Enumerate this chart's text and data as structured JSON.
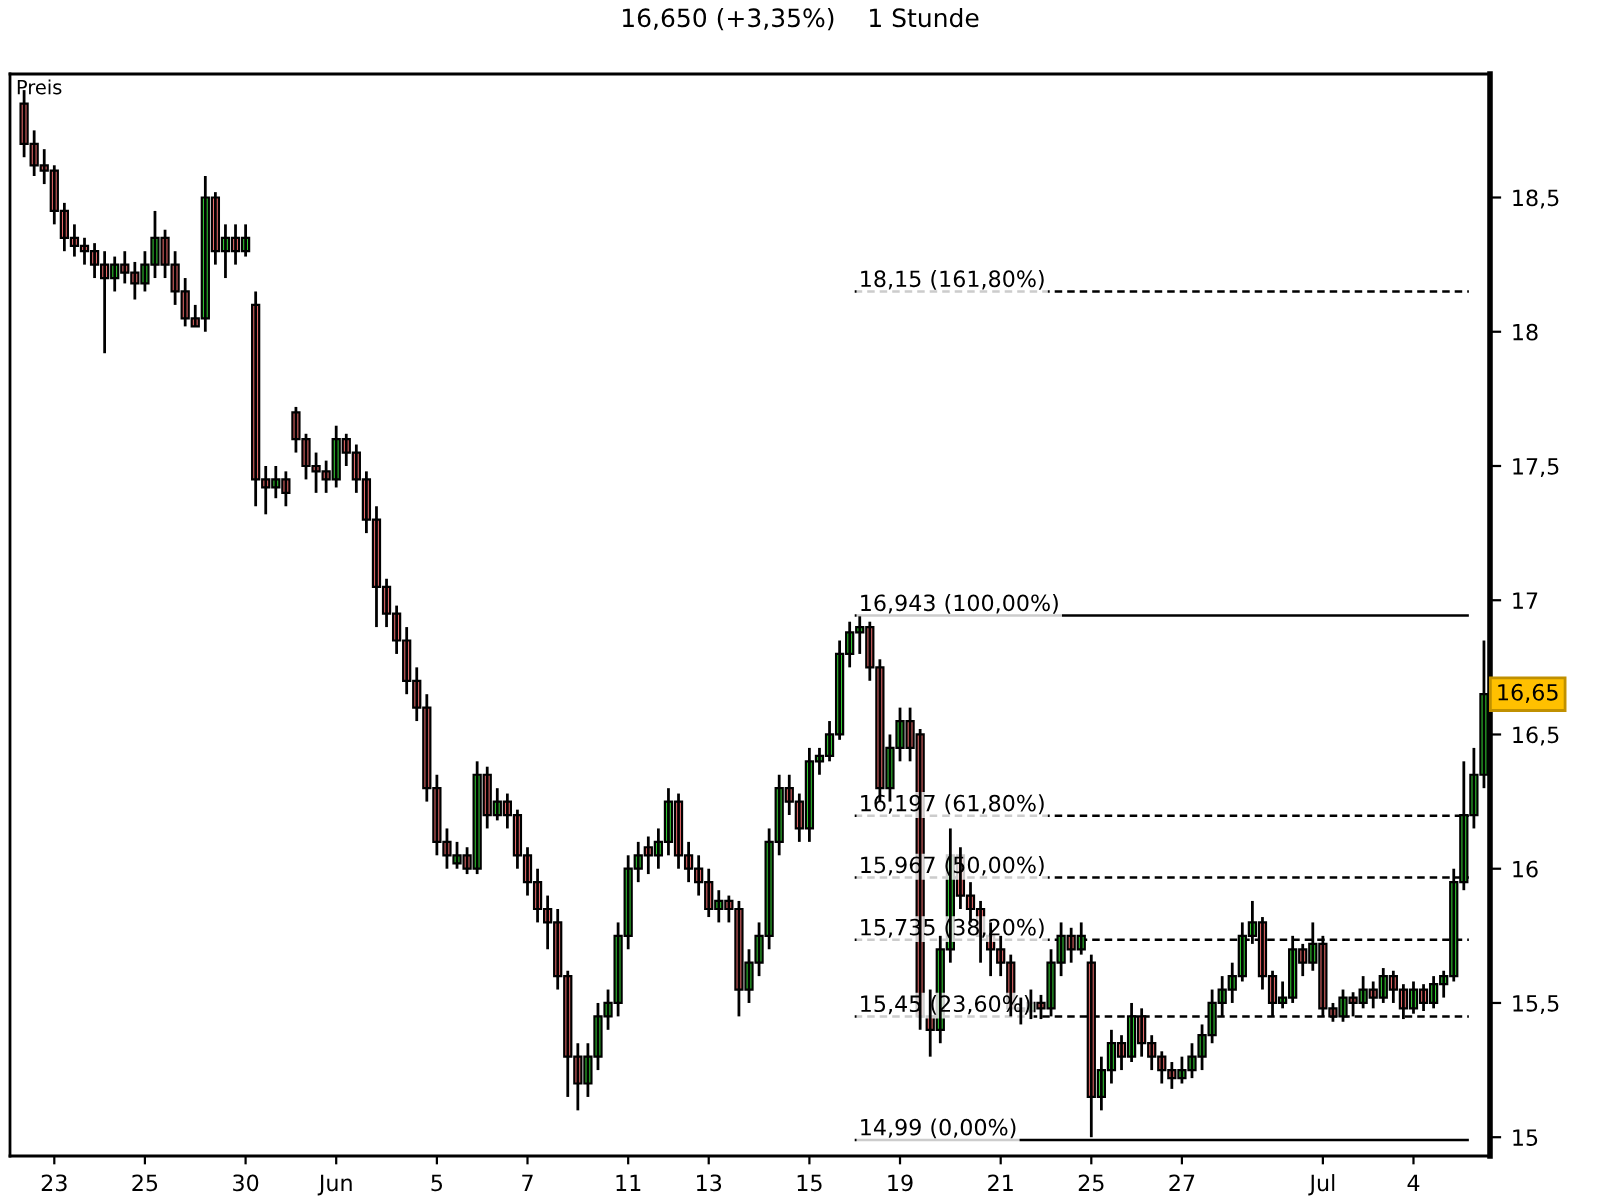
{
  "chart_data": {
    "type": "candlestick",
    "title": "16,650 (+3,35%)    1 Stunde",
    "ylabel": "Preis",
    "categories": [
      null,
      null,
      null,
      "23",
      null,
      null,
      null,
      null,
      null,
      null,
      null,
      null,
      "25",
      null,
      null,
      null,
      null,
      null,
      null,
      null,
      null,
      null,
      "30",
      null,
      null,
      null,
      null,
      null,
      null,
      null,
      null,
      "Jun",
      null,
      null,
      null,
      null,
      null,
      null,
      null,
      null,
      null,
      "5",
      null,
      null,
      null,
      null,
      null,
      null,
      null,
      null,
      "7",
      null,
      null,
      null,
      null,
      null,
      null,
      null,
      null,
      null,
      "11",
      null,
      null,
      null,
      null,
      null,
      null,
      null,
      "13",
      null,
      null,
      null,
      null,
      null,
      null,
      null,
      null,
      null,
      "15",
      null,
      null,
      null,
      null,
      null,
      null,
      null,
      null,
      "19",
      null,
      null,
      null,
      null,
      null,
      null,
      null,
      null,
      null,
      "21",
      null,
      null,
      null,
      null,
      null,
      null,
      null,
      null,
      "25",
      null,
      null,
      null,
      null,
      null,
      null,
      null,
      null,
      "27",
      null,
      null,
      null,
      null,
      null,
      null,
      null,
      null,
      null,
      null,
      null,
      null,
      null,
      "Jul",
      null,
      null,
      null,
      null,
      null,
      null,
      null,
      null,
      "4",
      null,
      null,
      null,
      null,
      null,
      null,
      null
    ],
    "ohlc": [
      [
        18.85,
        18.9,
        18.65,
        18.7
      ],
      [
        18.7,
        18.75,
        18.58,
        18.62
      ],
      [
        18.62,
        18.68,
        18.55,
        18.6
      ],
      [
        18.6,
        18.62,
        18.4,
        18.45
      ],
      [
        18.45,
        18.48,
        18.3,
        18.35
      ],
      [
        18.35,
        18.4,
        18.28,
        18.32
      ],
      [
        18.32,
        18.35,
        18.25,
        18.3
      ],
      [
        18.3,
        18.33,
        18.2,
        18.25
      ],
      [
        18.25,
        18.3,
        17.92,
        18.2
      ],
      [
        18.2,
        18.28,
        18.15,
        18.25
      ],
      [
        18.25,
        18.3,
        18.18,
        18.22
      ],
      [
        18.22,
        18.26,
        18.12,
        18.18
      ],
      [
        18.18,
        18.3,
        18.15,
        18.25
      ],
      [
        18.25,
        18.45,
        18.2,
        18.35
      ],
      [
        18.35,
        18.38,
        18.2,
        18.25
      ],
      [
        18.25,
        18.3,
        18.1,
        18.15
      ],
      [
        18.15,
        18.2,
        18.02,
        18.05
      ],
      [
        18.05,
        18.1,
        18.02,
        18.02
      ],
      [
        18.05,
        18.58,
        18.0,
        18.5
      ],
      [
        18.5,
        18.52,
        18.25,
        18.3
      ],
      [
        18.3,
        18.4,
        18.2,
        18.35
      ],
      [
        18.35,
        18.4,
        18.25,
        18.3
      ],
      [
        18.3,
        18.4,
        18.28,
        18.35
      ],
      [
        18.1,
        18.15,
        17.35,
        17.45
      ],
      [
        17.45,
        17.5,
        17.32,
        17.42
      ],
      [
        17.42,
        17.5,
        17.38,
        17.45
      ],
      [
        17.45,
        17.48,
        17.35,
        17.4
      ],
      [
        17.7,
        17.72,
        17.55,
        17.6
      ],
      [
        17.6,
        17.62,
        17.45,
        17.5
      ],
      [
        17.5,
        17.55,
        17.4,
        17.48
      ],
      [
        17.48,
        17.52,
        17.4,
        17.45
      ],
      [
        17.45,
        17.65,
        17.42,
        17.6
      ],
      [
        17.6,
        17.62,
        17.5,
        17.55
      ],
      [
        17.55,
        17.58,
        17.4,
        17.45
      ],
      [
        17.45,
        17.48,
        17.25,
        17.3
      ],
      [
        17.3,
        17.35,
        16.9,
        17.05
      ],
      [
        17.05,
        17.08,
        16.9,
        16.95
      ],
      [
        16.95,
        16.98,
        16.8,
        16.85
      ],
      [
        16.85,
        16.9,
        16.65,
        16.7
      ],
      [
        16.7,
        16.75,
        16.55,
        16.6
      ],
      [
        16.6,
        16.65,
        16.25,
        16.3
      ],
      [
        16.3,
        16.35,
        16.05,
        16.1
      ],
      [
        16.1,
        16.15,
        16.0,
        16.05
      ],
      [
        16.02,
        16.1,
        16.0,
        16.05
      ],
      [
        16.05,
        16.08,
        15.98,
        16.0
      ],
      [
        16.0,
        16.4,
        15.98,
        16.35
      ],
      [
        16.35,
        16.38,
        16.15,
        16.2
      ],
      [
        16.2,
        16.3,
        16.18,
        16.25
      ],
      [
        16.25,
        16.28,
        16.15,
        16.2
      ],
      [
        16.2,
        16.22,
        16.0,
        16.05
      ],
      [
        16.05,
        16.08,
        15.9,
        15.95
      ],
      [
        15.95,
        16.0,
        15.8,
        15.85
      ],
      [
        15.85,
        15.9,
        15.7,
        15.8
      ],
      [
        15.8,
        15.85,
        15.55,
        15.6
      ],
      [
        15.6,
        15.62,
        15.15,
        15.3
      ],
      [
        15.3,
        15.35,
        15.1,
        15.2
      ],
      [
        15.2,
        15.35,
        15.15,
        15.3
      ],
      [
        15.3,
        15.5,
        15.25,
        15.45
      ],
      [
        15.45,
        15.55,
        15.4,
        15.5
      ],
      [
        15.5,
        15.8,
        15.45,
        15.75
      ],
      [
        15.75,
        16.05,
        15.7,
        16.0
      ],
      [
        16.0,
        16.1,
        15.95,
        16.05
      ],
      [
        16.08,
        16.12,
        15.98,
        16.05
      ],
      [
        16.05,
        16.15,
        16.0,
        16.1
      ],
      [
        16.1,
        16.3,
        16.05,
        16.25
      ],
      [
        16.25,
        16.28,
        16.0,
        16.05
      ],
      [
        16.05,
        16.1,
        15.95,
        16.0
      ],
      [
        16.0,
        16.05,
        15.9,
        15.95
      ],
      [
        15.95,
        16.0,
        15.82,
        15.85
      ],
      [
        15.85,
        15.92,
        15.8,
        15.88
      ],
      [
        15.88,
        15.9,
        15.8,
        15.85
      ],
      [
        15.85,
        15.88,
        15.45,
        15.55
      ],
      [
        15.55,
        15.7,
        15.5,
        15.65
      ],
      [
        15.65,
        15.8,
        15.6,
        15.75
      ],
      [
        15.75,
        16.15,
        15.7,
        16.1
      ],
      [
        16.1,
        16.35,
        16.05,
        16.3
      ],
      [
        16.3,
        16.35,
        16.2,
        16.25
      ],
      [
        16.25,
        16.28,
        16.1,
        16.15
      ],
      [
        16.15,
        16.45,
        16.1,
        16.4
      ],
      [
        16.4,
        16.45,
        16.35,
        16.42
      ],
      [
        16.42,
        16.55,
        16.4,
        16.5
      ],
      [
        16.5,
        16.85,
        16.48,
        16.8
      ],
      [
        16.8,
        16.92,
        16.75,
        16.88
      ],
      [
        16.88,
        16.94,
        16.8,
        16.9
      ],
      [
        16.9,
        16.92,
        16.7,
        16.75
      ],
      [
        16.75,
        16.78,
        16.25,
        16.3
      ],
      [
        16.3,
        16.5,
        16.25,
        16.45
      ],
      [
        16.45,
        16.6,
        16.4,
        16.55
      ],
      [
        16.55,
        16.6,
        16.4,
        16.45
      ],
      [
        16.5,
        16.52,
        15.4,
        15.45
      ],
      [
        15.45,
        15.55,
        15.3,
        15.4
      ],
      [
        15.4,
        15.75,
        15.35,
        15.7
      ],
      [
        15.7,
        16.15,
        15.65,
        16.05
      ],
      [
        16.05,
        16.08,
        15.85,
        15.9
      ],
      [
        15.9,
        15.95,
        15.8,
        15.85
      ],
      [
        15.85,
        15.88,
        15.65,
        15.75
      ],
      [
        15.75,
        15.8,
        15.6,
        15.7
      ],
      [
        15.7,
        15.75,
        15.6,
        15.65
      ],
      [
        15.65,
        15.68,
        15.45,
        15.48
      ],
      [
        15.48,
        15.52,
        15.42,
        15.47
      ],
      [
        15.47,
        15.55,
        15.44,
        15.5
      ],
      [
        15.5,
        15.53,
        15.44,
        15.48
      ],
      [
        15.48,
        15.7,
        15.45,
        15.65
      ],
      [
        15.65,
        15.8,
        15.6,
        15.75
      ],
      [
        15.75,
        15.78,
        15.65,
        15.7
      ],
      [
        15.7,
        15.8,
        15.68,
        15.75
      ],
      [
        15.65,
        15.68,
        15.0,
        15.15
      ],
      [
        15.15,
        15.3,
        15.1,
        15.25
      ],
      [
        15.25,
        15.4,
        15.2,
        15.35
      ],
      [
        15.35,
        15.38,
        15.25,
        15.3
      ],
      [
        15.3,
        15.5,
        15.28,
        15.45
      ],
      [
        15.45,
        15.48,
        15.3,
        15.35
      ],
      [
        15.35,
        15.38,
        15.25,
        15.3
      ],
      [
        15.3,
        15.32,
        15.2,
        15.25
      ],
      [
        15.25,
        15.28,
        15.18,
        15.22
      ],
      [
        15.22,
        15.3,
        15.2,
        15.25
      ],
      [
        15.25,
        15.35,
        15.22,
        15.3
      ],
      [
        15.3,
        15.42,
        15.25,
        15.38
      ],
      [
        15.38,
        15.55,
        15.35,
        15.5
      ],
      [
        15.5,
        15.6,
        15.45,
        15.55
      ],
      [
        15.55,
        15.65,
        15.5,
        15.6
      ],
      [
        15.6,
        15.8,
        15.58,
        15.75
      ],
      [
        15.75,
        15.88,
        15.72,
        15.8
      ],
      [
        15.8,
        15.82,
        15.55,
        15.6
      ],
      [
        15.6,
        15.62,
        15.45,
        15.5
      ],
      [
        15.5,
        15.58,
        15.48,
        15.52
      ],
      [
        15.52,
        15.75,
        15.5,
        15.7
      ],
      [
        15.7,
        15.72,
        15.6,
        15.65
      ],
      [
        15.65,
        15.8,
        15.62,
        15.72
      ],
      [
        15.72,
        15.75,
        15.45,
        15.48
      ],
      [
        15.48,
        15.5,
        15.43,
        15.45
      ],
      [
        15.45,
        15.55,
        15.43,
        15.52
      ],
      [
        15.52,
        15.54,
        15.45,
        15.5
      ],
      [
        15.5,
        15.6,
        15.48,
        15.55
      ],
      [
        15.55,
        15.58,
        15.48,
        15.52
      ],
      [
        15.52,
        15.63,
        15.5,
        15.6
      ],
      [
        15.6,
        15.62,
        15.5,
        15.55
      ],
      [
        15.55,
        15.57,
        15.44,
        15.48
      ],
      [
        15.48,
        15.58,
        15.46,
        15.55
      ],
      [
        15.55,
        15.57,
        15.47,
        15.5
      ],
      [
        15.5,
        15.6,
        15.48,
        15.57
      ],
      [
        15.57,
        15.62,
        15.52,
        15.6
      ],
      [
        15.6,
        16.0,
        15.58,
        15.95
      ],
      [
        15.95,
        16.4,
        15.92,
        16.2
      ],
      [
        16.2,
        16.45,
        16.15,
        16.35
      ],
      [
        16.35,
        16.85,
        16.3,
        16.65
      ]
    ],
    "colors": [
      "#e86a6a",
      "#e86a6a",
      "#e86a6a",
      "#e86a6a",
      "#e86a6a",
      "#e86a6a",
      "#e86a6a",
      "#e86a6a",
      "#e86a6a",
      "#33cc33",
      "#e86a6a",
      "#e86a6a",
      "#33cc33",
      "#33cc33",
      "#e86a6a",
      "#e86a6a",
      "#e86a6a",
      "#e86a6a",
      "#33cc33",
      "#e86a6a",
      "#33cc33",
      "#e86a6a",
      "#33cc33",
      "#e86a6a",
      "#e86a6a",
      "#33cc33",
      "#e86a6a",
      "#e86a6a",
      "#e86a6a",
      "#e86a6a",
      "#e86a6a",
      "#33cc33",
      "#e86a6a",
      "#e86a6a",
      "#e86a6a",
      "#e86a6a",
      "#e86a6a",
      "#e86a6a",
      "#e86a6a",
      "#e86a6a",
      "#e86a6a",
      "#e86a6a",
      "#e86a6a",
      "#33cc33",
      "#e86a6a",
      "#33cc33",
      "#e86a6a",
      "#33cc33",
      "#e86a6a",
      "#e86a6a",
      "#e86a6a",
      "#e86a6a",
      "#e86a6a",
      "#e86a6a",
      "#e86a6a",
      "#e86a6a",
      "#33cc33",
      "#33cc33",
      "#33cc33",
      "#33cc33",
      "#33cc33",
      "#33cc33",
      "#e86a6a",
      "#33cc33",
      "#33cc33",
      "#e86a6a",
      "#e86a6a",
      "#e86a6a",
      "#e86a6a",
      "#33cc33",
      "#e86a6a",
      "#e86a6a",
      "#33cc33",
      "#33cc33",
      "#33cc33",
      "#33cc33",
      "#e86a6a",
      "#e86a6a",
      "#33cc33",
      "#33cc33",
      "#33cc33",
      "#33cc33",
      "#33cc33",
      "#33cc33",
      "#e86a6a",
      "#e86a6a",
      "#33cc33",
      "#33cc33",
      "#e86a6a",
      "#e86a6a",
      "#e86a6a",
      "#33cc33",
      "#33cc33",
      "#e86a6a",
      "#e86a6a",
      "#e86a6a",
      "#e86a6a",
      "#e86a6a",
      "#e86a6a",
      "#e86a6a",
      "#33cc33",
      "#e86a6a",
      "#33cc33",
      "#33cc33",
      "#e86a6a",
      "#33cc33",
      "#e86a6a",
      "#33cc33",
      "#33cc33",
      "#e86a6a",
      "#33cc33",
      "#e86a6a",
      "#e86a6a",
      "#e86a6a",
      "#e86a6a",
      "#33cc33",
      "#33cc33",
      "#33cc33",
      "#33cc33",
      "#33cc33",
      "#33cc33",
      "#33cc33",
      "#33cc33",
      "#e86a6a",
      "#e86a6a",
      "#33cc33",
      "#33cc33",
      "#e86a6a",
      "#33cc33",
      "#e86a6a",
      "#e86a6a",
      "#33cc33",
      "#e86a6a",
      "#33cc33",
      "#e86a6a",
      "#33cc33",
      "#e86a6a",
      "#e86a6a",
      "#33cc33",
      "#e86a6a",
      "#33cc33",
      "#33cc33",
      "#33cc33",
      "#33cc33",
      "#33cc33",
      "#33cc33"
    ],
    "ylim": [
      14.93,
      18.96
    ],
    "yticks": [
      15,
      {
        "value": 15.5,
        "label": "15,5"
      },
      16,
      {
        "value": 16.5,
        "label": "16,5"
      },
      17,
      {
        "value": 17.5,
        "label": "17,5"
      },
      18,
      {
        "value": 18.5,
        "label": "18,5"
      }
    ],
    "ref_lines": [
      {
        "axis": "y",
        "value": 18.15,
        "label": "18,15 (161,80%)",
        "color": "#000000",
        "line_style": "dashed"
      },
      {
        "axis": "y",
        "value": 16.943,
        "label": "16,943 (100,00%)",
        "color": "#000000",
        "line_style": "solid"
      },
      {
        "axis": "y",
        "value": 16.197,
        "label": "16,197 (61,80%)",
        "color": "#000000",
        "line_style": "dashed"
      },
      {
        "axis": "y",
        "value": 15.967,
        "label": "15,967 (50,00%)",
        "color": "#000000",
        "line_style": "dashed"
      },
      {
        "axis": "y",
        "value": 15.735,
        "label": "15,735 (38,20%)",
        "color": "#000000",
        "line_style": "dashed"
      },
      {
        "axis": "y",
        "value": 15.45,
        "label": "15,45 (23,60%)",
        "color": "#000000",
        "line_style": "dashed"
      },
      {
        "axis": "y",
        "value": 14.99,
        "label": "14,99 (0,00%)",
        "color": "#000000",
        "line_style": "solid"
      }
    ],
    "annotations": [
      {
        "text": "16,65",
        "y": 16.65
      }
    ],
    "grid": false,
    "legend": false
  }
}
